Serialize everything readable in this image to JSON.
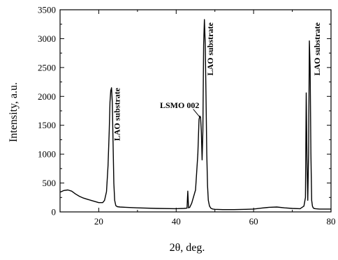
{
  "chart_data": {
    "type": "line",
    "xlabel": "2θ, deg.",
    "ylabel": "Intensity, a.u.",
    "xlim": [
      10,
      80
    ],
    "ylim": [
      0,
      3500
    ],
    "x_ticks": [
      20,
      40,
      60,
      80
    ],
    "y_ticks": [
      0,
      500,
      1000,
      1500,
      2000,
      2500,
      3000,
      3500
    ],
    "grid": false,
    "series": [
      {
        "x": [
          10,
          11,
          12,
          13,
          14,
          15,
          16,
          17,
          18,
          19,
          20,
          21,
          21.5,
          22,
          22.4,
          22.7,
          22.9,
          23.1,
          23.3,
          23.5,
          23.7,
          23.9,
          24.1,
          24.4,
          24.8,
          25.5,
          27,
          30,
          35,
          40,
          42,
          42.8,
          43.0,
          43.2,
          43.5,
          44,
          45,
          45.6,
          45.9,
          46.1,
          46.3,
          46.5,
          46.7,
          46.9,
          47.1,
          47.3,
          47.5,
          47.7,
          47.9,
          48.1,
          48.3,
          48.6,
          49,
          49.5,
          50,
          52,
          55,
          58,
          60,
          62,
          64,
          66,
          68,
          70,
          72,
          73,
          73.4,
          73.6,
          73.8,
          74.0,
          74.2,
          74.4,
          74.6,
          74.8,
          75.0,
          75.2,
          75.4,
          75.6,
          76,
          77,
          78,
          80
        ],
        "y": [
          340,
          370,
          380,
          360,
          310,
          270,
          240,
          220,
          200,
          180,
          160,
          160,
          200,
          350,
          800,
          1400,
          1900,
          2100,
          2150,
          1900,
          1200,
          500,
          200,
          110,
          90,
          85,
          80,
          70,
          60,
          55,
          60,
          65,
          360,
          70,
          80,
          150,
          380,
          1000,
          1600,
          1660,
          1640,
          1400,
          900,
          1400,
          2900,
          3330,
          2900,
          2000,
          1000,
          450,
          200,
          100,
          60,
          50,
          45,
          40,
          40,
          45,
          50,
          65,
          80,
          85,
          70,
          60,
          55,
          100,
          250,
          2060,
          900,
          200,
          1000,
          2960,
          2500,
          1000,
          200,
          100,
          70,
          60,
          55,
          50,
          50,
          50
        ]
      }
    ],
    "annotations": [
      {
        "text": "LAO substrate",
        "x": 24.5,
        "y": 2150,
        "rotate": -90
      },
      {
        "text": "LSMO 002",
        "x": 35.8,
        "y": 1800
      },
      {
        "text": "LAO substrate",
        "x": 48.6,
        "y": 3280,
        "rotate": -90
      },
      {
        "text": "LAO substrate",
        "x": 76.2,
        "y": 3280,
        "rotate": -90
      }
    ]
  }
}
